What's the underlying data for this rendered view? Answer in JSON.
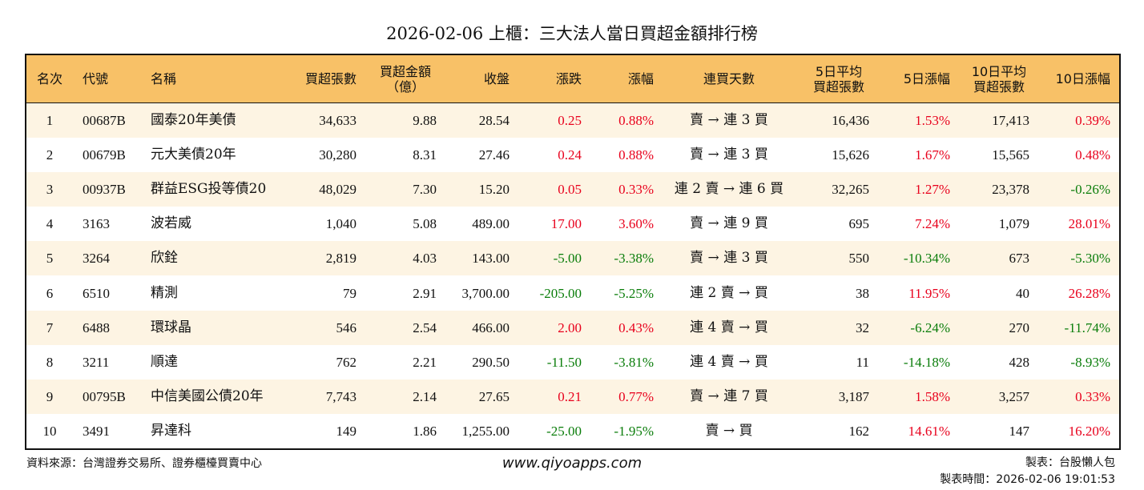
{
  "title": "2026-02-06 上櫃：三大法人當日買超金額排行榜",
  "table": {
    "header": [
      "名次",
      "代號",
      "名稱",
      "買超張數",
      "買超金額\n（億）",
      "收盤",
      "漲跌",
      "漲幅",
      "連買天數",
      "5日平均\n買超張數",
      "5日漲幅",
      "10日平均\n買超張數",
      "10日漲幅"
    ],
    "rows": [
      [
        "1",
        "00687B",
        "國泰20年美債",
        "34,633",
        "9.88",
        "28.54",
        "0.25",
        "0.88%",
        "賣 → 連 3 買",
        "16,436",
        "1.53%",
        "17,413",
        "0.39%"
      ],
      [
        "2",
        "00679B",
        "元大美債20年",
        "30,280",
        "8.31",
        "27.46",
        "0.24",
        "0.88%",
        "賣 → 連 3 買",
        "15,626",
        "1.67%",
        "15,565",
        "0.48%"
      ],
      [
        "3",
        "00937B",
        "群益ESG投等債20",
        "48,029",
        "7.30",
        "15.20",
        "0.05",
        "0.33%",
        "連 2 賣 → 連 6 買",
        "32,265",
        "1.27%",
        "23,378",
        "-0.26%"
      ],
      [
        "4",
        "3163",
        "波若威",
        "1,040",
        "5.08",
        "489.00",
        "17.00",
        "3.60%",
        "賣 → 連 9 買",
        "695",
        "7.24%",
        "1,079",
        "28.01%"
      ],
      [
        "5",
        "3264",
        "欣銓",
        "2,819",
        "4.03",
        "143.00",
        "-5.00",
        "-3.38%",
        "賣 → 連 3 買",
        "550",
        "-10.34%",
        "673",
        "-5.30%"
      ],
      [
        "6",
        "6510",
        "精測",
        "79",
        "2.91",
        "3,700.00",
        "-205.00",
        "-5.25%",
        "連 2 賣 → 買",
        "38",
        "11.95%",
        "40",
        "26.28%"
      ],
      [
        "7",
        "6488",
        "環球晶",
        "546",
        "2.54",
        "466.00",
        "2.00",
        "0.43%",
        "連 4 賣 → 買",
        "32",
        "-6.24%",
        "270",
        "-11.74%"
      ],
      [
        "8",
        "3211",
        "順達",
        "762",
        "2.21",
        "290.50",
        "-11.50",
        "-3.81%",
        "連 4 賣 → 買",
        "11",
        "-14.18%",
        "428",
        "-8.93%"
      ],
      [
        "9",
        "00795B",
        "中信美國公債20年",
        "7,743",
        "2.14",
        "27.65",
        "0.21",
        "0.77%",
        "賣 → 連 7 買",
        "3,187",
        "1.58%",
        "3,257",
        "0.33%"
      ],
      [
        "10",
        "3491",
        "昇達科",
        "149",
        "1.86",
        "1,255.00",
        "-25.00",
        "-1.95%",
        "賣 → 買",
        "162",
        "14.61%",
        "147",
        "16.20%"
      ]
    ]
  },
  "footer": {
    "source": "資料來源：台灣證券交易所、證券櫃檯買賣中心",
    "website": "www.qiyoapps.com",
    "maker": "製表：台股懶人包",
    "time": "製表時間：2026-02-06 19:01:53"
  },
  "colors": {
    "up": "#e8001c",
    "down": "#0a7d0a",
    "header": "#f8c167",
    "stripe": "#fdf4e3"
  }
}
